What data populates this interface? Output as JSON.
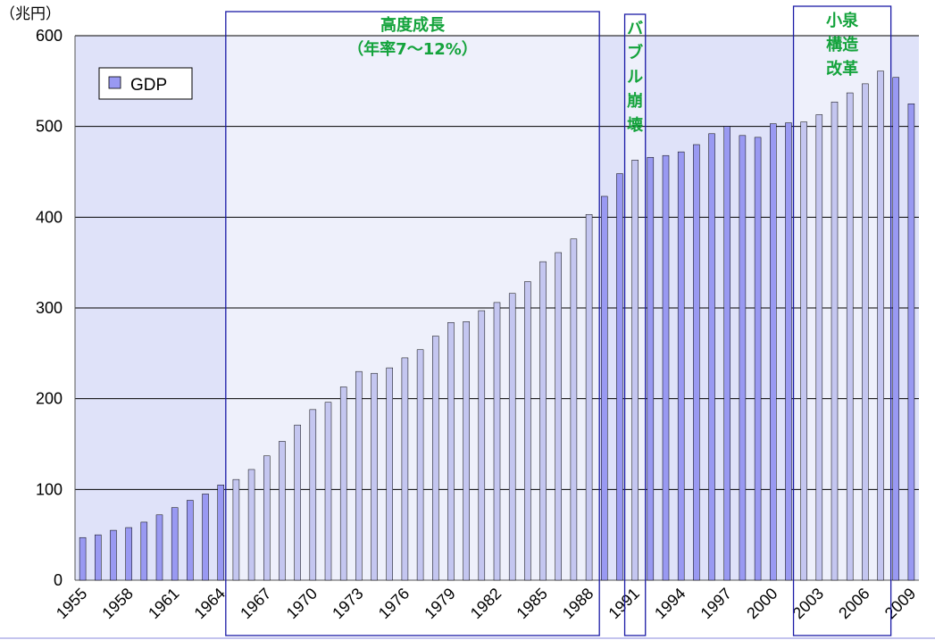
{
  "chart_data": {
    "type": "bar",
    "y_unit_label": "（兆円）",
    "ylim": [
      0,
      600
    ],
    "y_ticks": [
      0,
      100,
      200,
      300,
      400,
      500,
      600
    ],
    "grid": true,
    "legend_position": "top-left",
    "series": [
      {
        "name": "GDP",
        "x": [
          1955,
          1956,
          1957,
          1958,
          1959,
          1960,
          1961,
          1962,
          1963,
          1964,
          1965,
          1966,
          1967,
          1968,
          1969,
          1970,
          1971,
          1972,
          1973,
          1974,
          1975,
          1976,
          1977,
          1978,
          1979,
          1980,
          1981,
          1982,
          1983,
          1984,
          1985,
          1986,
          1987,
          1988,
          1989,
          1990,
          1991,
          1992,
          1993,
          1994,
          1995,
          1996,
          1997,
          1998,
          1999,
          2000,
          2001,
          2002,
          2003,
          2004,
          2005,
          2006,
          2007,
          2008,
          2009
        ],
        "values": [
          47,
          50,
          55,
          58,
          64,
          72,
          80,
          88,
          95,
          105,
          111,
          122,
          137,
          153,
          171,
          188,
          196,
          213,
          230,
          228,
          234,
          245,
          254,
          269,
          284,
          285,
          297,
          306,
          316,
          329,
          351,
          361,
          376,
          403,
          423,
          448,
          463,
          466,
          468,
          472,
          480,
          492,
          500,
          490,
          488,
          503,
          504,
          505,
          513,
          527,
          537,
          547,
          561,
          554,
          525
        ]
      }
    ],
    "x_tick_labels": [
      "1955",
      "1958",
      "1961",
      "1964",
      "1967",
      "1970",
      "1973",
      "1976",
      "1979",
      "1982",
      "1985",
      "1988",
      "1991",
      "1994",
      "1997",
      "2000",
      "2003",
      "2006",
      "2009"
    ],
    "colors": {
      "bar_fill": "#9999f2",
      "bar_fill_highlight": "#c4c6f0",
      "bar_stroke": "#000000",
      "plot_bg": "#dfe2f9",
      "grid": "#000000",
      "box": "#1a1aa6",
      "annot_text": "#14a33c",
      "tick_muted": "#7f7f7f"
    },
    "annotations": [
      {
        "id": "high-growth",
        "start_year": 1965,
        "end_year": 1988,
        "lines": [
          "高度成長",
          "（年率7～12%）"
        ],
        "orientation": "horizontal"
      },
      {
        "id": "bubble-collapse",
        "start_year": 1991,
        "end_year": 1991,
        "lines": [
          "バ",
          "ブ",
          "ル",
          "崩",
          "壊"
        ],
        "orientation": "vertical"
      },
      {
        "id": "koizumi-reform",
        "start_year": 2002,
        "end_year": 2007,
        "lines": [
          "小泉",
          "構造",
          "改革"
        ],
        "orientation": "vertical"
      }
    ]
  }
}
